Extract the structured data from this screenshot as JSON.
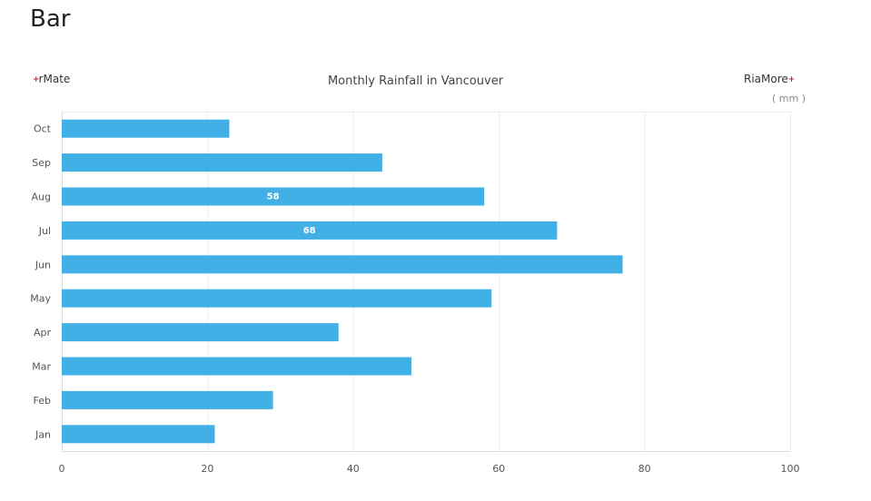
{
  "page": {
    "title": "Bar"
  },
  "branding": {
    "left_plus": "+",
    "left_name": "rMate",
    "right_name": "RiaMore",
    "right_plus": "+"
  },
  "chart_data": {
    "type": "bar",
    "orientation": "horizontal",
    "title": "Monthly Rainfall in Vancouver",
    "unit": "( mm )",
    "xlabel": "",
    "ylabel": "",
    "xlim": [
      0,
      100
    ],
    "x_ticks": [
      0,
      20,
      40,
      60,
      80,
      100
    ],
    "grid": "vertical",
    "bar_color": "#40b0e6",
    "categories": [
      "Oct",
      "Sep",
      "Aug",
      "Jul",
      "Jun",
      "May",
      "Apr",
      "Mar",
      "Feb",
      "Jan"
    ],
    "values": [
      23,
      44,
      58,
      68,
      77,
      59,
      38,
      48,
      29,
      21
    ],
    "data_labels": [
      {
        "category": "Aug",
        "value": 58
      },
      {
        "category": "Jul",
        "value": 68
      }
    ]
  }
}
